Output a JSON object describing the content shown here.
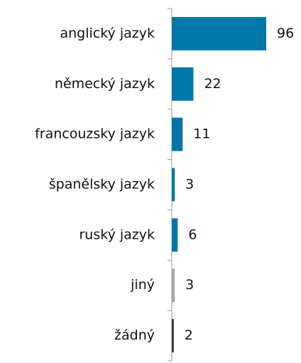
{
  "chart_data": {
    "type": "bar",
    "orientation": "horizontal",
    "categories": [
      "anglický jazyk",
      "německý jazyk",
      "francouzsky jazyk",
      "španělsky jazyk",
      "ruský jazyk",
      "jiný",
      "žádný"
    ],
    "values": [
      96,
      22,
      11,
      3,
      6,
      3,
      2
    ],
    "colors": [
      "#0077a8",
      "#0077a8",
      "#0077a8",
      "#0077a8",
      "#0077a8",
      "#a6a6a6",
      "#333333"
    ],
    "grid": false
  }
}
